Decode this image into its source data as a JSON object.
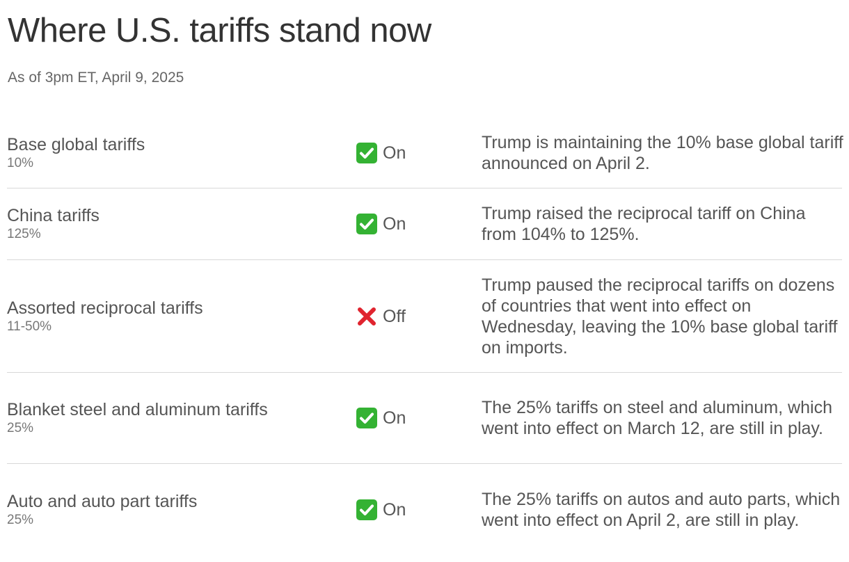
{
  "header": {
    "title": "Where U.S. tariffs stand now",
    "subtitle": "As of 3pm ET, April 9, 2025"
  },
  "rows": [
    {
      "name": "Base global tariffs",
      "rate": "10%",
      "status": "On",
      "status_icon": "check-mark-icon",
      "description": "Trump is maintaining the 10% base global tariff announced on April 2."
    },
    {
      "name": "China tariffs",
      "rate": "125%",
      "status": "On",
      "status_icon": "check-mark-icon",
      "description": "Trump raised the reciprocal tariff on China from 104% to 125%."
    },
    {
      "name": "Assorted reciprocal tariffs",
      "rate": "11-50%",
      "status": "Off",
      "status_icon": "cross-mark-icon",
      "description": "Trump paused the reciprocal tariffs on dozens of countries that went into effect on Wednesday, leaving the 10% base global tariff on imports."
    },
    {
      "name": "Blanket steel and aluminum tariffs",
      "rate": "25%",
      "status": "On",
      "status_icon": "check-mark-icon",
      "description": "The 25% tariffs on steel and aluminum, which went into effect on March 12, are still in play."
    },
    {
      "name": "Auto and auto part tariffs",
      "rate": "25%",
      "status": "On",
      "status_icon": "check-mark-icon",
      "description": "The 25% tariffs on autos and auto parts, which went into effect on April 2, are still in play."
    }
  ],
  "colors": {
    "check_green": "#34b233",
    "cross_red": "#e0242f",
    "divider": "#d8d8d8"
  }
}
